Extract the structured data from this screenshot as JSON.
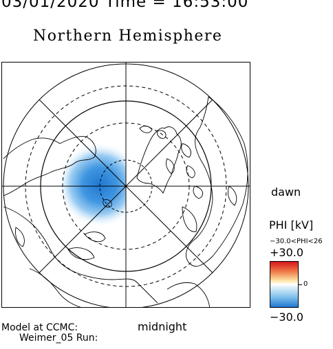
{
  "header": {
    "time_line": "03/01/2020 Time = 16:53:00",
    "title": "Northern Hemisphere"
  },
  "map": {
    "labels": {
      "dawn": "dawn",
      "midnight": "midnight"
    },
    "colors": {
      "positive": "#d7191c",
      "negative": "#1f78d1",
      "neutral": "#ffffff"
    }
  },
  "footer": {
    "model_line1": "Model at CCMC:",
    "model_line2": "Weimer_05 Run:"
  },
  "colorbar": {
    "title": "PHI [kV]",
    "range_text": "−30.0<PHI<26",
    "max_label": "+30.0",
    "zero_label": "0",
    "min_label": "−30.0",
    "max_value": 30.0,
    "min_value": -30.0
  }
}
